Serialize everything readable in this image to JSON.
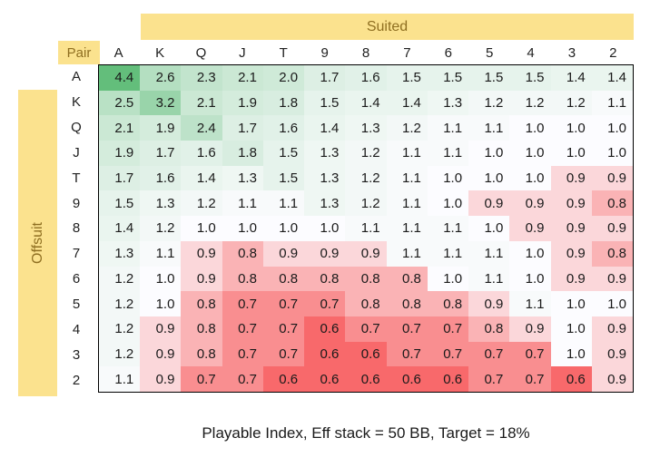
{
  "labels": {
    "corner": "Pair",
    "columns_band": "Suited",
    "rows_band": "Offsuit"
  },
  "caption": "Playable Index, Eff stack = 50 BB, Target = 18%",
  "chart_data": {
    "type": "heatmap",
    "title": "Playable Index, Eff stack = 50 BB, Target = 18%",
    "corner_label": "Pair",
    "columns_header": "Suited",
    "rows_header": "Offsuit",
    "x_labels": [
      "A",
      "K",
      "Q",
      "J",
      "T",
      "9",
      "8",
      "7",
      "6",
      "5",
      "4",
      "3",
      "2"
    ],
    "y_labels": [
      "A",
      "K",
      "Q",
      "J",
      "T",
      "9",
      "8",
      "7",
      "6",
      "5",
      "4",
      "3",
      "2"
    ],
    "values": [
      [
        4.4,
        2.6,
        2.3,
        2.1,
        2.0,
        1.7,
        1.6,
        1.5,
        1.5,
        1.5,
        1.5,
        1.4,
        1.4
      ],
      [
        2.5,
        3.2,
        2.1,
        1.9,
        1.8,
        1.5,
        1.4,
        1.4,
        1.3,
        1.2,
        1.2,
        1.2,
        1.1
      ],
      [
        2.1,
        1.9,
        2.4,
        1.7,
        1.6,
        1.4,
        1.3,
        1.2,
        1.1,
        1.1,
        1.0,
        1.0,
        1.0
      ],
      [
        1.9,
        1.7,
        1.6,
        1.8,
        1.5,
        1.3,
        1.2,
        1.1,
        1.1,
        1.0,
        1.0,
        1.0,
        1.0
      ],
      [
        1.7,
        1.6,
        1.4,
        1.3,
        1.5,
        1.3,
        1.2,
        1.1,
        1.0,
        1.0,
        1.0,
        0.9,
        0.9
      ],
      [
        1.5,
        1.3,
        1.2,
        1.1,
        1.1,
        1.3,
        1.2,
        1.1,
        1.0,
        0.9,
        0.9,
        0.9,
        0.8
      ],
      [
        1.4,
        1.2,
        1.0,
        1.0,
        1.0,
        1.0,
        1.1,
        1.1,
        1.1,
        1.0,
        0.9,
        0.9,
        0.9
      ],
      [
        1.3,
        1.1,
        0.9,
        0.8,
        0.9,
        0.9,
        0.9,
        1.1,
        1.1,
        1.1,
        1.0,
        0.9,
        0.8
      ],
      [
        1.2,
        1.0,
        0.9,
        0.8,
        0.8,
        0.8,
        0.8,
        0.8,
        1.0,
        1.1,
        1.0,
        0.9,
        0.9
      ],
      [
        1.2,
        1.0,
        0.8,
        0.7,
        0.7,
        0.7,
        0.8,
        0.8,
        0.8,
        0.9,
        1.1,
        1.0,
        1.0
      ],
      [
        1.2,
        0.9,
        0.8,
        0.7,
        0.7,
        0.6,
        0.7,
        0.7,
        0.7,
        0.8,
        0.9,
        1.0,
        0.9
      ],
      [
        1.2,
        0.9,
        0.8,
        0.7,
        0.7,
        0.6,
        0.6,
        0.7,
        0.7,
        0.7,
        0.7,
        1.0,
        0.9
      ],
      [
        1.1,
        0.9,
        0.7,
        0.7,
        0.6,
        0.6,
        0.6,
        0.6,
        0.6,
        0.7,
        0.7,
        0.6,
        0.9
      ]
    ],
    "value_format_decimals": 1,
    "color_scale": {
      "min_value": 0.6,
      "mid_value": 1.0,
      "max_value": 4.4,
      "min_color": "#F8696B",
      "mid_color": "#FCFCFF",
      "max_color": "#63BE7B"
    },
    "band_color": "#FBE28E",
    "band_text_color": "#8F6F21",
    "legend_position": "none",
    "grid": false
  }
}
